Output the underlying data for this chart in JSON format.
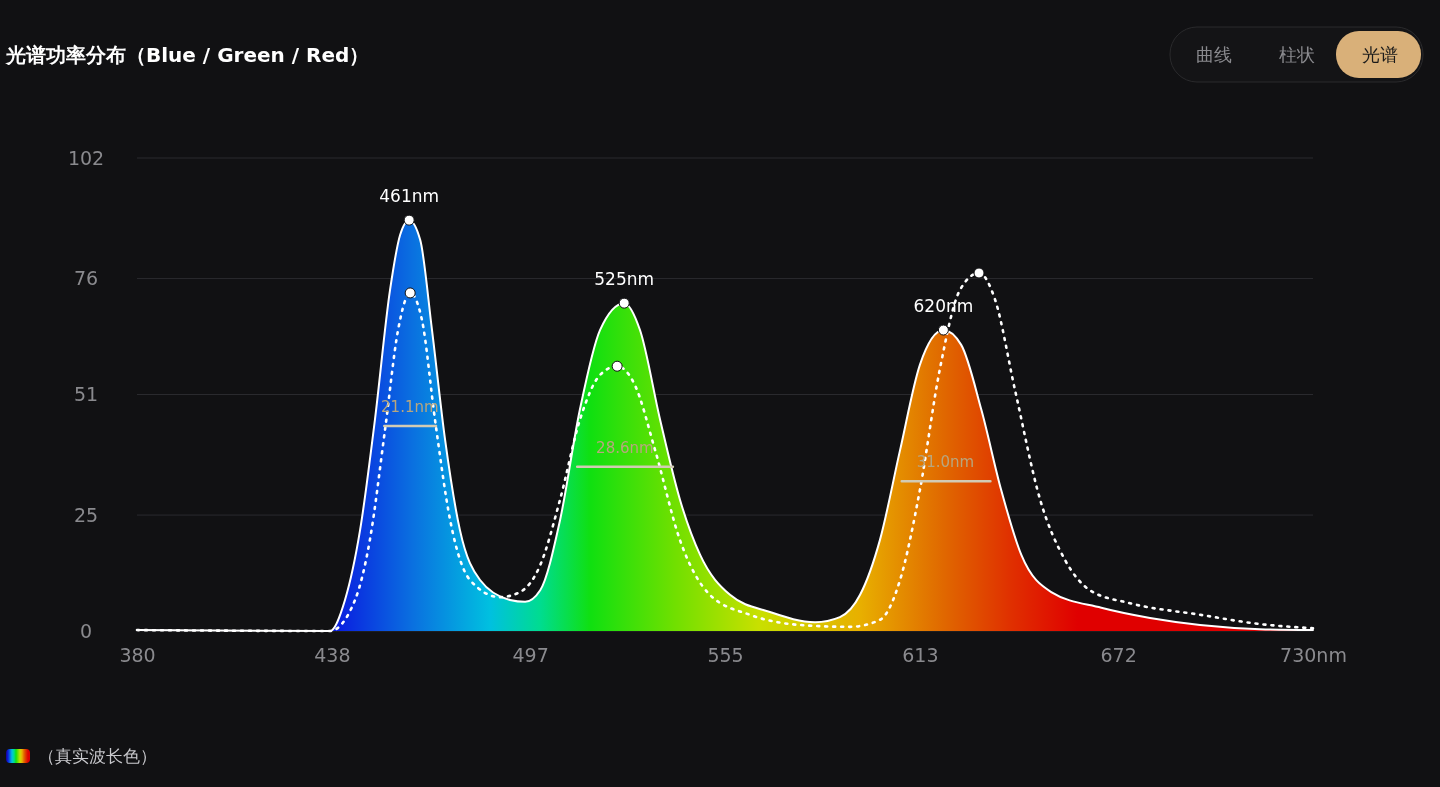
{
  "chart_data": {
    "type": "area",
    "title": "光谱功率分布（Blue / Green / Red）",
    "xlim": [
      380,
      730
    ],
    "xticks": [
      380,
      438,
      497,
      555,
      613,
      672,
      {
        "value": 730,
        "label": "730nm"
      }
    ],
    "ylim": [
      0,
      102
    ],
    "yticks": [
      0,
      25,
      51,
      76,
      102
    ],
    "grid": "y",
    "legend": "bottom left",
    "series": [
      {
        "name": "（真实波长色）",
        "color": "#ffffff",
        "x": [
          380,
          437.4,
          441.9,
          446.4,
          450.8,
          455.3,
          458.3,
          461,
          464.3,
          467.8,
          471.7,
          476.1,
          482.1,
          491,
          495.5,
          500,
          505.9,
          511.8,
          517.8,
          525,
          529.7,
          535.7,
          541.6,
          547.6,
          556.5,
          568.4,
          581.8,
          589.2,
          595.2,
          601.1,
          607.1,
          613,
          620,
          625.3,
          631.3,
          637.2,
          643.2,
          652.1,
          667,
          681.5,
          696.4,
          714.2,
          730
        ],
        "values": [
          0.2,
          0,
          6.7,
          21.8,
          45.5,
          73.5,
          85.4,
          88.6,
          84.3,
          64.9,
          41.2,
          21.8,
          11,
          6.7,
          6.3,
          8.8,
          23.9,
          47.7,
          64.9,
          70.7,
          64.9,
          45.5,
          28.3,
          16.4,
          7.8,
          4.1,
          1.9,
          3,
          7.8,
          19.6,
          39,
          57.4,
          64.9,
          61.7,
          47.7,
          30.4,
          16.4,
          8.4,
          5,
          2.8,
          1.3,
          0.4,
          0.2
        ]
      },
      {
        "type": "line",
        "line_style": "dotted",
        "color": "#ffffff",
        "x": [
          380,
          437.4,
          444.9,
          449.3,
          453.8,
          457.7,
          461.3,
          464.8,
          468.7,
          473.2,
          479.1,
          488,
          494,
          500,
          505.9,
          511.8,
          517.8,
          522.9,
          528.2,
          534.2,
          541.6,
          550.5,
          562.4,
          577.3,
          592.2,
          601.1,
          607.1,
          613,
          618.9,
          624.9,
          630.6,
          635.4,
          641.3,
          648.8,
          656.2,
          663.6,
          675.5,
          696.4,
          714.2,
          730
        ],
        "values": [
          0.2,
          0,
          6.7,
          19.6,
          43.3,
          64.9,
          72.9,
          67.1,
          45.5,
          23.9,
          11,
          7.3,
          8.4,
          14.2,
          28.3,
          45.5,
          55.2,
          57.1,
          53,
          39,
          19.6,
          7.8,
          3.5,
          1.3,
          0.9,
          2.4,
          11,
          30.4,
          56.3,
          73.5,
          77.2,
          71.4,
          52,
          28.3,
          15.3,
          8.8,
          6,
          3.5,
          1.5,
          0.6
        ]
      },
      {
        "type": "scatter",
        "marker": "circle",
        "color": "#ffffff",
        "x": [
          461,
          525,
          620
        ],
        "values": [
          88.6,
          70.7,
          64.9
        ]
      },
      {
        "type": "scatter",
        "marker": "circle",
        "color": "#ffffff",
        "x": [
          461.3,
          522.9,
          630.6
        ],
        "values": [
          72.9,
          57.1,
          77.2
        ]
      },
      {
        "type": "line",
        "line_style": "solid",
        "color": "#d2cbb4",
        "x": [
          453.6,
          469,
          490,
          511,
          539.5,
          580,
          607.6,
          634
        ],
        "values": [
          44.2,
          44.2,
          null,
          35.4,
          35.4,
          null,
          32.3,
          32.3
        ]
      }
    ],
    "annotations": [
      {
        "text": "461nm",
        "x": 461,
        "y": 88.6
      },
      {
        "text": "525nm",
        "x": 525,
        "y": 70.7
      },
      {
        "text": "620nm",
        "x": 620,
        "y": 64.9
      },
      {
        "text": "21.1nm",
        "x": 461.2,
        "y": 44.2
      },
      {
        "text": "28.6nm",
        "x": 525.2,
        "y": 35.4
      },
      {
        "text": "31.0nm",
        "x": 620.6,
        "y": 32.3
      },
      "曲线",
      "柱状",
      "光谱"
    ]
  }
}
